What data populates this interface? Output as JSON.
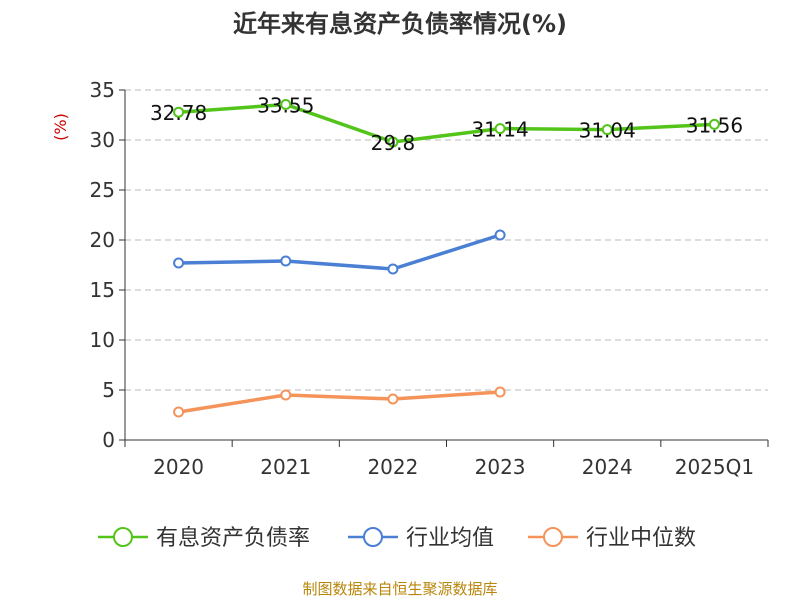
{
  "chart_data": {
    "type": "line",
    "title": "近年来有息资产负债率情况(%)",
    "ylabel": "(%)",
    "categories": [
      "2020",
      "2021",
      "2022",
      "2023",
      "2024",
      "2025Q1"
    ],
    "ylim": [
      0,
      35
    ],
    "yticks": [
      0,
      5,
      10,
      15,
      20,
      25,
      30,
      35
    ],
    "grid": true,
    "legend_position": "bottom",
    "series": [
      {
        "name": "有息资产负债率",
        "color": "#52c41a",
        "values": [
          32.78,
          33.55,
          29.8,
          31.14,
          31.04,
          31.56
        ],
        "labels": [
          "32.78",
          "33.55",
          "29.8",
          "31.14",
          "31.04",
          "31.56"
        ]
      },
      {
        "name": "行业均值",
        "color": "#4a7fd4",
        "values": [
          17.7,
          17.9,
          17.1,
          20.5,
          null,
          null
        ]
      },
      {
        "name": "行业中位数",
        "color": "#f4935a",
        "values": [
          2.8,
          4.5,
          4.1,
          4.8,
          null,
          null
        ]
      }
    ],
    "source": "制图数据来自恒生聚源数据库"
  }
}
